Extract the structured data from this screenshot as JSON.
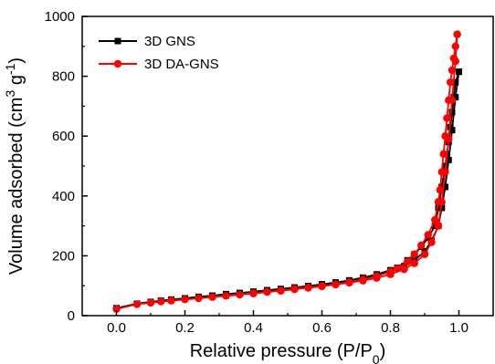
{
  "chart_data": {
    "type": "line",
    "title": "",
    "xlabel": "Relative pressure (P/P",
    "xlabel_sub": "0",
    "xlabel_suffix": ")",
    "ylabel": "Volume adsorbed (cm",
    "ylabel_sup1": "3",
    "ylabel_mid": " g",
    "ylabel_sup2": "-1",
    "ylabel_suffix": ")",
    "xlim": [
      -0.1,
      1.1
    ],
    "ylim": [
      0,
      1000
    ],
    "xticks": [
      "0.0",
      "0.2",
      "0.4",
      "0.6",
      "0.8",
      "1.0"
    ],
    "yticks": [
      "0",
      "200",
      "400",
      "600",
      "800",
      "1000"
    ],
    "grid": false,
    "legend_position": "top-left",
    "series": [
      {
        "name": "3D GNS",
        "color": "#000000",
        "marker": "square",
        "adsorption": {
          "x": [
            0.0,
            0.06,
            0.1,
            0.13,
            0.16,
            0.2,
            0.24,
            0.28,
            0.32,
            0.36,
            0.4,
            0.44,
            0.48,
            0.52,
            0.56,
            0.6,
            0.64,
            0.68,
            0.72,
            0.76,
            0.8,
            0.84,
            0.87,
            0.9,
            0.92,
            0.94,
            0.95,
            0.96,
            0.97,
            0.98,
            0.99,
            1.0
          ],
          "y": [
            25,
            40,
            46,
            50,
            54,
            58,
            63,
            67,
            72,
            76,
            80,
            85,
            89,
            94,
            98,
            104,
            110,
            116,
            124,
            134,
            146,
            165,
            185,
            215,
            250,
            300,
            360,
            430,
            520,
            620,
            730,
            815
          ]
        },
        "desorption": {
          "x": [
            1.0,
            0.99,
            0.985,
            0.98,
            0.975,
            0.97,
            0.965,
            0.96,
            0.95,
            0.94,
            0.93,
            0.91,
            0.89,
            0.87,
            0.85,
            0.82,
            0.8,
            0.76,
            0.72,
            0.68,
            0.64,
            0.6,
            0.56,
            0.52,
            0.48,
            0.44,
            0.4
          ],
          "y": [
            815,
            780,
            730,
            680,
            630,
            580,
            540,
            500,
            430,
            360,
            300,
            260,
            230,
            205,
            185,
            160,
            152,
            138,
            127,
            118,
            111,
            105,
            99,
            94,
            89,
            85,
            80
          ]
        }
      },
      {
        "name": "3D DA-GNS",
        "color": "#ff0000",
        "marker": "circle",
        "adsorption": {
          "x": [
            0.0,
            0.06,
            0.1,
            0.13,
            0.16,
            0.2,
            0.24,
            0.28,
            0.32,
            0.36,
            0.4,
            0.44,
            0.48,
            0.52,
            0.56,
            0.6,
            0.64,
            0.68,
            0.72,
            0.76,
            0.8,
            0.84,
            0.87,
            0.9,
            0.92,
            0.94,
            0.95,
            0.96,
            0.97,
            0.98,
            0.99,
            0.995
          ],
          "y": [
            22,
            38,
            43,
            47,
            50,
            54,
            58,
            62,
            66,
            70,
            74,
            79,
            83,
            88,
            93,
            98,
            104,
            110,
            117,
            126,
            138,
            155,
            175,
            205,
            245,
            300,
            380,
            480,
            590,
            720,
            850,
            940
          ]
        },
        "desorption": {
          "x": [
            0.995,
            0.99,
            0.985,
            0.98,
            0.975,
            0.97,
            0.965,
            0.96,
            0.955,
            0.95,
            0.945,
            0.94,
            0.93,
            0.91,
            0.89,
            0.87,
            0.85,
            0.82,
            0.8,
            0.76,
            0.72,
            0.68,
            0.64,
            0.6,
            0.56,
            0.52,
            0.48,
            0.44,
            0.4
          ],
          "y": [
            940,
            900,
            860,
            820,
            780,
            720,
            660,
            600,
            540,
            480,
            420,
            380,
            320,
            270,
            235,
            205,
            180,
            157,
            147,
            132,
            121,
            112,
            105,
            99,
            94,
            89,
            84,
            79,
            75
          ]
        }
      }
    ]
  }
}
